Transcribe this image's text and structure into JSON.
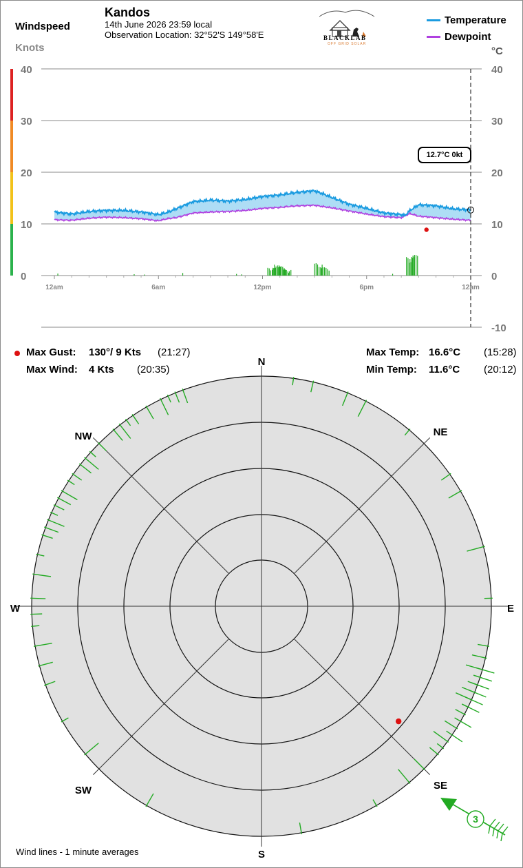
{
  "header": {
    "station": "Kandos",
    "datetime": "14th June 2026  23:59 local",
    "location": "Observation Location: 32°52'S 149°58'E",
    "left_title": "Windspeed",
    "left_unit": "Knots",
    "right_unit": "°C",
    "logo_text": "BLACKLAB",
    "logo_sub": "OFF GRID SOLAR"
  },
  "legend": [
    {
      "label": "Temperature",
      "color": "#1a9be0"
    },
    {
      "label": "Dewpoint",
      "color": "#b040e0"
    }
  ],
  "readout": "12.7°C  0kt",
  "stats": {
    "max_gust_label": "Max Gust:",
    "max_gust_value": "130°/  9 Kts",
    "max_gust_time": "(21:27)",
    "max_wind_label": "Max Wind:",
    "max_wind_value": "4 Kts",
    "max_wind_time": "(20:35)",
    "max_temp_label": "Max Temp:",
    "max_temp_value": "16.6°C",
    "max_temp_time": "(15:28)",
    "min_temp_label": "Min Temp:",
    "min_temp_value": "11.6°C",
    "min_temp_time": "(20:12)"
  },
  "compass": {
    "labels": [
      "N",
      "NE",
      "E",
      "SE",
      "S",
      "SW",
      "W",
      "NW"
    ],
    "current_speed": "3",
    "footer": "Wind lines - 1 minute averages"
  },
  "colors": {
    "wind": "#22aa22",
    "gust": "#dd1111",
    "fill": "#aeddf5",
    "dial": "#e1e1e1"
  },
  "chart_data": [
    {
      "type": "line",
      "x_ticks": [
        "12am",
        "6am",
        "12pm",
        "6pm",
        "12am"
      ],
      "y_left_ticks": [
        "40",
        "30",
        "20",
        "10",
        "0"
      ],
      "y_right_ticks": [
        "40",
        "30",
        "20",
        "10",
        "0",
        "-10"
      ],
      "y_left_range": [
        0,
        40
      ],
      "y_right_range": [
        -10,
        40
      ],
      "series": [
        {
          "name": "Temperature",
          "x_hours": [
            0,
            1,
            2,
            3,
            4,
            5,
            6,
            6.5,
            7,
            8,
            9,
            10,
            11,
            12,
            13,
            14,
            15,
            15.5,
            16,
            17,
            18,
            19,
            20,
            20.2,
            20.5,
            21,
            22,
            23,
            24
          ],
          "values": [
            12.3,
            11.9,
            12.4,
            12.6,
            12.6,
            12.3,
            11.8,
            12.2,
            12.9,
            14.3,
            14.6,
            14.4,
            14.7,
            15.3,
            15.6,
            16.1,
            16.4,
            15.8,
            15.1,
            13.8,
            13.0,
            12.1,
            11.8,
            11.6,
            12.6,
            13.7,
            13.5,
            12.9,
            12.7
          ]
        },
        {
          "name": "Dewpoint",
          "x_hours": [
            0,
            1,
            2,
            3,
            4,
            5,
            6,
            6.5,
            7,
            8,
            9,
            10,
            11,
            12,
            13,
            14,
            15,
            16,
            17,
            18,
            19,
            20,
            20.5,
            21,
            22,
            23,
            24
          ],
          "values": [
            10.8,
            10.7,
            11.1,
            11.3,
            11.2,
            11.0,
            10.6,
            11.0,
            11.2,
            12.1,
            12.3,
            12.4,
            12.6,
            13.0,
            13.2,
            13.5,
            13.6,
            13.1,
            12.5,
            11.9,
            11.4,
            11.2,
            12.0,
            11.5,
            11.2,
            10.9,
            10.7
          ]
        }
      ],
      "wind_knots": {
        "x_hours": [
          0.2,
          4.6,
          5.2,
          7.4,
          10.5,
          10.8,
          12.3,
          12.6,
          12.9,
          13.2,
          13.5,
          15.0,
          15.4,
          19.5,
          20.3,
          20.5
        ],
        "values": [
          0.4,
          0.3,
          0.3,
          0.5,
          0.4,
          0.3,
          1.5,
          2.2,
          1.8,
          1.2,
          0.9,
          2.4,
          1.6,
          0.5,
          3.6,
          4.0
        ]
      },
      "max_gust_marker": {
        "x_hours": 21.45,
        "knots": 9
      },
      "current_time_line": 24
    },
    {
      "type": "scatter",
      "polar": true,
      "wind_directions_deg": [
        8,
        13,
        22,
        27,
        40,
        55,
        60,
        75,
        88,
        100,
        103,
        106,
        108,
        110,
        112,
        114,
        116,
        118,
        122,
        126,
        128,
        130,
        135,
        140,
        150,
        170,
        210,
        230,
        240,
        250,
        255,
        260,
        265,
        268,
        272,
        278,
        283,
        288,
        290,
        292,
        294,
        296,
        298,
        300,
        303,
        305,
        308,
        310,
        312,
        315,
        320,
        322,
        324,
        326,
        330,
        334,
        336,
        338,
        340
      ],
      "max_gust_direction_deg": 130,
      "rings": 4
    }
  ]
}
